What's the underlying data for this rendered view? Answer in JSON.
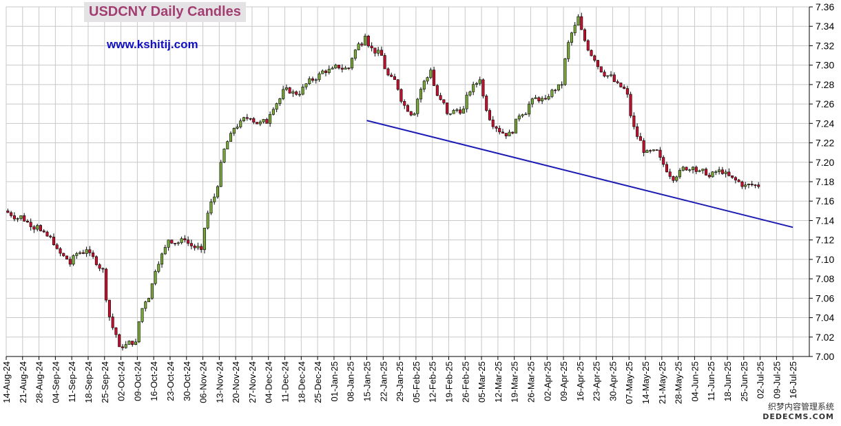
{
  "chart_data": {
    "type": "candlestick",
    "title": "USDCNY Daily Candles",
    "source_label": "www.kshitij.com",
    "y_range": [
      7.0,
      7.36
    ],
    "y_ticks": [
      "7.00",
      "7.02",
      "7.04",
      "7.06",
      "7.08",
      "7.10",
      "7.12",
      "7.14",
      "7.16",
      "7.18",
      "7.20",
      "7.22",
      "7.24",
      "7.26",
      "7.28",
      "7.30",
      "7.32",
      "7.34",
      "7.36"
    ],
    "x_labels": [
      "14-Aug-24",
      "21-Aug-24",
      "28-Aug-24",
      "04-Sep-24",
      "11-Sep-24",
      "18-Sep-24",
      "25-Sep-24",
      "02-Oct-24",
      "09-Oct-24",
      "16-Oct-24",
      "23-Oct-24",
      "30-Oct-24",
      "06-Nov-24",
      "13-Nov-24",
      "20-Nov-24",
      "27-Nov-24",
      "04-Dec-24",
      "11-Dec-24",
      "18-Dec-24",
      "25-Dec-24",
      "01-Jan-25",
      "08-Jan-25",
      "15-Jan-25",
      "22-Jan-25",
      "29-Jan-25",
      "05-Feb-25",
      "12-Feb-25",
      "19-Feb-25",
      "26-Feb-25",
      "05-Mar-25",
      "12-Mar-25",
      "19-Mar-25",
      "26-Mar-25",
      "02-Apr-25",
      "09-Apr-25",
      "16-Apr-25",
      "23-Apr-25",
      "30-Apr-25",
      "07-May-25",
      "14-May-25",
      "21-May-25",
      "28-May-25",
      "04-Jun-25",
      "11-Jun-25",
      "18-Jun-25",
      "25-Jun-25",
      "02-Jul-25",
      "09-Jul-25",
      "16-Jul-25"
    ],
    "grid": true,
    "y_axis_side": "right",
    "colors": {
      "up": "#7aa93a",
      "down": "#c8102e",
      "trendline": "#1c1cb4",
      "grid": "#c8c8c8",
      "axis": "#000000"
    },
    "weekly_closes": [
      7.145,
      7.135,
      7.115,
      7.095,
      7.11,
      7.09,
      7.01,
      7.015,
      7.075,
      7.12,
      7.12,
      7.11,
      7.175,
      7.235,
      7.245,
      7.24,
      7.275,
      7.27,
      7.285,
      7.297,
      7.297,
      7.33,
      7.31,
      7.275,
      7.25,
      7.295,
      7.25,
      7.255,
      7.285,
      7.235,
      7.23,
      7.26,
      7.265,
      7.28,
      7.35,
      7.305,
      7.29,
      7.27,
      7.21,
      7.205,
      7.185,
      7.195,
      7.185,
      7.19,
      7.175,
      7.175
    ],
    "trendline": {
      "from": {
        "x": "15-Jan-25",
        "y": 7.243
      },
      "to": {
        "x": "16-Jul-25",
        "y": 7.133
      }
    },
    "watermark": [
      "织梦内容管理系统",
      "DEDECMS.COM"
    ]
  }
}
